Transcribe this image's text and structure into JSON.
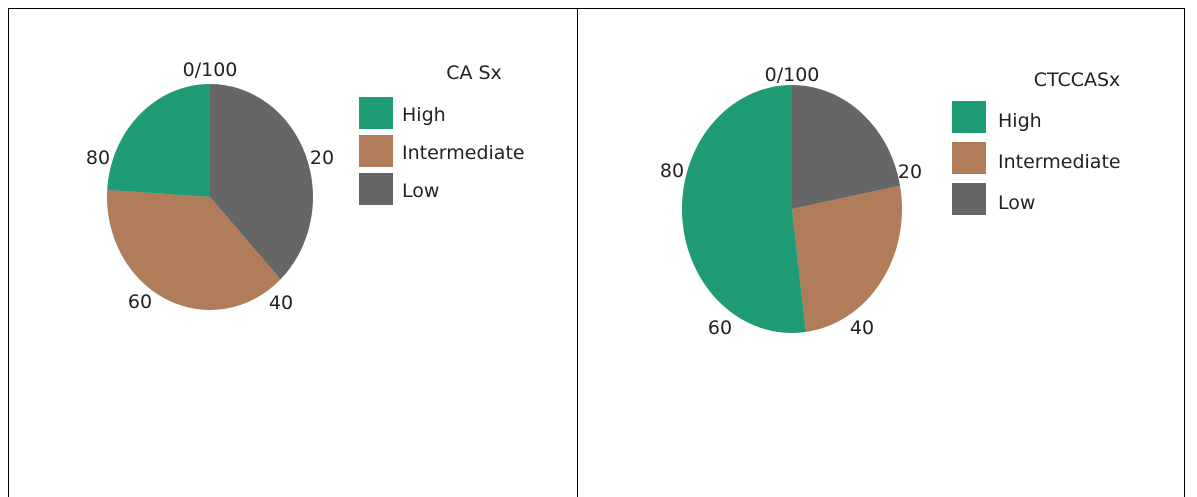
{
  "chart_data": [
    {
      "type": "pie",
      "title": "CA Sx",
      "tick_labels": [
        "0/100",
        "20",
        "40",
        "60",
        "80"
      ],
      "series": [
        {
          "name": "Low",
          "value": 38,
          "color": "#666666"
        },
        {
          "name": "Intermediate",
          "value": 38,
          "color": "#b07c5a"
        },
        {
          "name": "High",
          "value": 24,
          "color": "#1f9b76"
        }
      ],
      "legend": [
        "High",
        "Intermediate",
        "Low"
      ]
    },
    {
      "type": "pie",
      "title": "CTCCASx",
      "tick_labels": [
        "0/100",
        "20",
        "40",
        "60",
        "80"
      ],
      "series": [
        {
          "name": "Low",
          "value": 22,
          "color": "#666666"
        },
        {
          "name": "Intermediate",
          "value": 26,
          "color": "#b07c5a"
        },
        {
          "name": "High",
          "value": 52,
          "color": "#1f9b76"
        }
      ],
      "legend": [
        "High",
        "Intermediate",
        "Low"
      ]
    }
  ]
}
